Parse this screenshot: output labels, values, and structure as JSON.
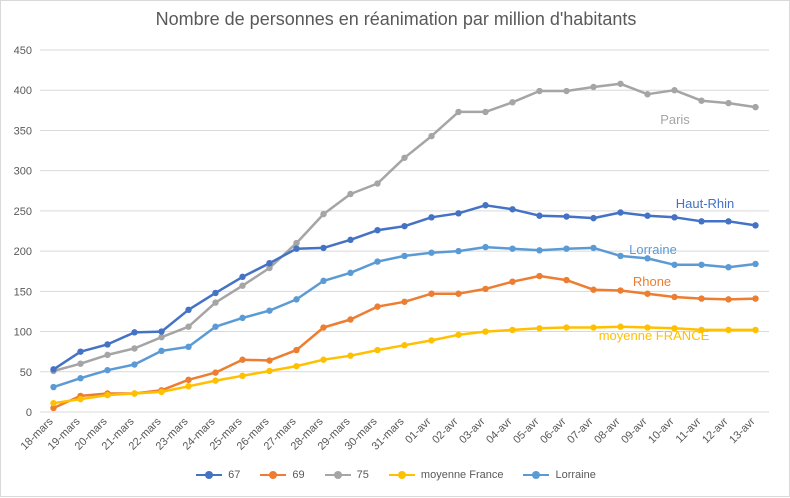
{
  "chart_data": {
    "type": "line",
    "title": "Nombre de personnes en réanimation par million d'habitants",
    "categories": [
      "18-mars",
      "19-mars",
      "20-mars",
      "21-mars",
      "22-mars",
      "23-mars",
      "24-mars",
      "25-mars",
      "26-mars",
      "27-mars",
      "28-mars",
      "29-mars",
      "30-mars",
      "31-mars",
      "01-avr",
      "02-avr",
      "03-avr",
      "04-avr",
      "05-avr",
      "06-avr",
      "07-avr",
      "08-avr",
      "09-avr",
      "10-avr",
      "11-avr",
      "12-avr",
      "13-avr"
    ],
    "ylim": [
      0,
      450
    ],
    "yticks": [
      0,
      50,
      100,
      150,
      200,
      250,
      300,
      350,
      400,
      450
    ],
    "grid": true,
    "legend_position": "bottom",
    "series": [
      {
        "name": "67",
        "color": "#4472c4",
        "values": [
          53,
          75,
          84,
          99,
          100,
          127,
          148,
          168,
          185,
          203,
          204,
          214,
          226,
          231,
          242,
          247,
          257,
          252,
          244,
          243,
          241,
          248,
          244,
          242,
          237,
          237,
          232
        ]
      },
      {
        "name": "69",
        "color": "#ed7d31",
        "values": [
          5,
          20,
          23,
          23,
          27,
          40,
          49,
          65,
          64,
          77,
          105,
          115,
          131,
          137,
          147,
          147,
          153,
          162,
          169,
          164,
          152,
          151,
          147,
          143,
          141,
          140,
          141
        ]
      },
      {
        "name": "75",
        "color": "#a5a5a5",
        "values": [
          51,
          60,
          71,
          79,
          93,
          106,
          136,
          157,
          179,
          210,
          246,
          271,
          284,
          316,
          343,
          373,
          373,
          385,
          399,
          399,
          404,
          408,
          395,
          400,
          387,
          384,
          379
        ]
      },
      {
        "name": "moyenne France",
        "color": "#ffc000",
        "values": [
          11,
          16,
          21,
          23,
          25,
          32,
          39,
          45,
          51,
          57,
          65,
          70,
          77,
          83,
          89,
          96,
          100,
          102,
          104,
          105,
          105,
          106,
          105,
          104,
          102,
          102,
          102
        ]
      },
      {
        "name": "Lorraine",
        "color": "#5b9bd5",
        "values": [
          31,
          42,
          52,
          59,
          76,
          81,
          106,
          117,
          126,
          140,
          163,
          173,
          187,
          194,
          198,
          200,
          205,
          203,
          201,
          203,
          204,
          194,
          191,
          183,
          183,
          180,
          184
        ]
      }
    ],
    "annotations": [
      {
        "text": "Paris",
        "color": "#a5a5a5"
      },
      {
        "text": "Haut-Rhin",
        "color": "#4472c4"
      },
      {
        "text": "Lorraine",
        "color": "#5b9bd5"
      },
      {
        "text": "Rhone",
        "color": "#ed7d31"
      },
      {
        "text": "moyenne FRANCE",
        "color": "#ffc000"
      }
    ]
  }
}
